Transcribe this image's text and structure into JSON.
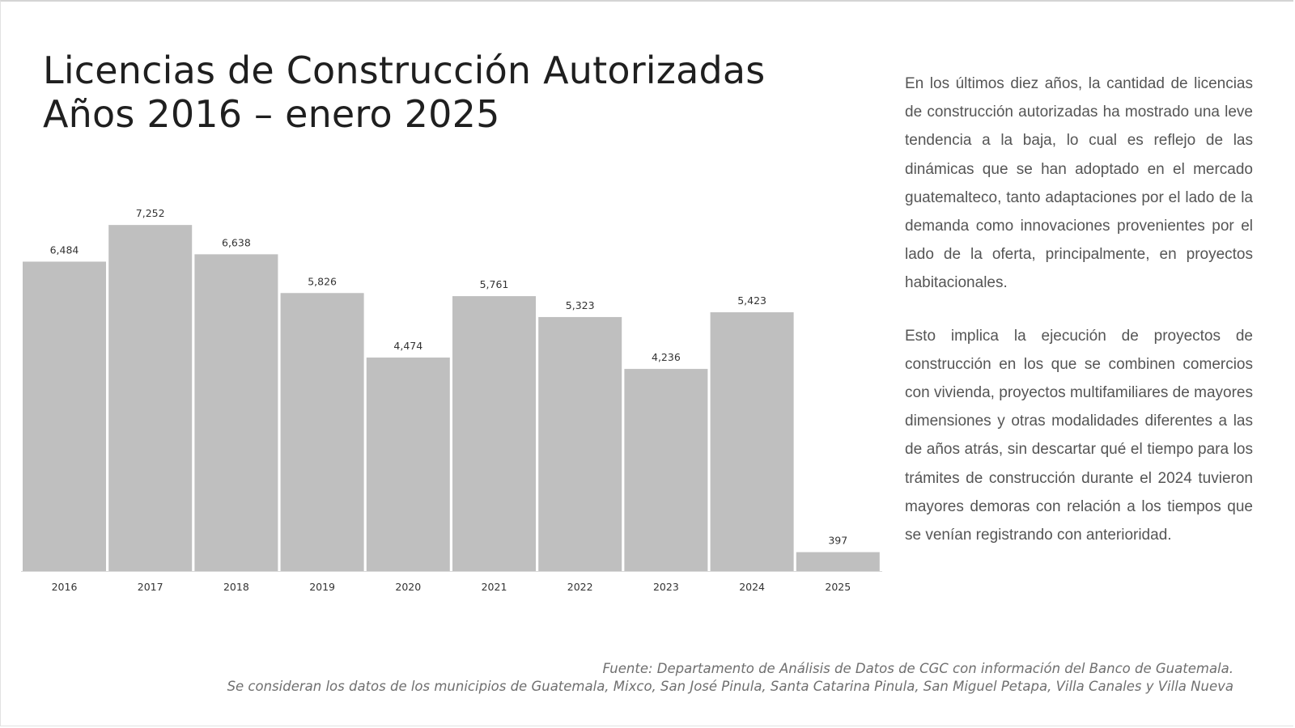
{
  "title": {
    "line1": "Licencias de Construcción Autorizadas",
    "line2": "Años 2016 – enero 2025"
  },
  "chart_data": {
    "type": "bar",
    "categories": [
      "2016",
      "2017",
      "2018",
      "2019",
      "2020",
      "2021",
      "2022",
      "2023",
      "2024",
      "2025"
    ],
    "values": [
      6484,
      7252,
      6638,
      5826,
      4474,
      5761,
      5323,
      4236,
      5423,
      397
    ],
    "data_labels": [
      "6,484",
      "7,252",
      "6,638",
      "5,826",
      "4,474",
      "5,761",
      "5,323",
      "4,236",
      "5,423",
      "397"
    ],
    "ylim": [
      0,
      7600
    ],
    "grid": false,
    "bar_color": "#bfbfbf"
  },
  "side_text": {
    "p1": "En los últimos diez años, la cantidad de licencias de construcción autorizadas ha mostrado una leve tendencia a la baja, lo cual es reflejo de las dinámicas que se han adoptado en el mercado guatemalteco, tanto adaptaciones por el lado de la demanda como innovaciones provenientes por el lado de la oferta, principalmente, en proyectos habitacionales.",
    "p2": "Esto implica la ejecución de proyectos de construcción en los que se combinen comercios con vivienda, proyectos multifamiliares de mayores dimensiones y otras modalidades diferentes a las de años atrás, sin descartar qué el tiempo para los trámites de construcción durante el 2024 tuvieron mayores demoras con relación a los tiempos que se venían registrando con anterioridad."
  },
  "source": {
    "line1": "Fuente: Departamento de Análisis de Datos de CGC con información del Banco de Guatemala.",
    "line2": "Se consideran los datos de los municipios de Guatemala, Mixco, San José Pinula, Santa Catarina Pinula, San Miguel Petapa, Villa Canales y Villa Nueva"
  }
}
